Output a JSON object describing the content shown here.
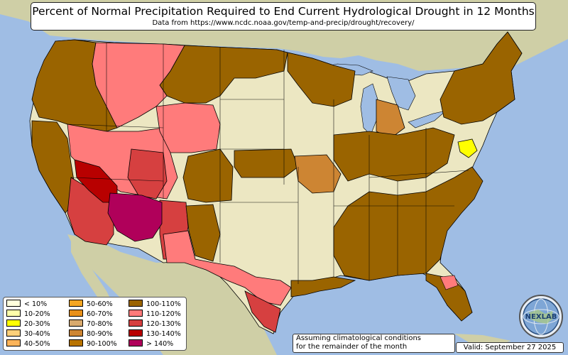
{
  "title": "Percent of Normal Precipitation Required to End Current Hydrological Drought in 12 Months",
  "subtitle": "Data from https://www.ncdc.noaa.gov/temp-and-precip/drought/recovery/",
  "legend": {
    "items": [
      {
        "label": "< 10%",
        "color": "#ffffdd"
      },
      {
        "label": "10-20%",
        "color": "#ffffaa"
      },
      {
        "label": "20-30%",
        "color": "#ffff00"
      },
      {
        "label": "30-40%",
        "color": "#fdd07a"
      },
      {
        "label": "40-50%",
        "color": "#fdb45a"
      },
      {
        "label": "50-60%",
        "color": "#f5a623"
      },
      {
        "label": "60-70%",
        "color": "#e8901a"
      },
      {
        "label": "70-80%",
        "color": "#d9aa6e"
      },
      {
        "label": "80-90%",
        "color": "#cd8533"
      },
      {
        "label": "90-100%",
        "color": "#b87300"
      },
      {
        "label": "100-110%",
        "color": "#9a6400"
      },
      {
        "label": "110-120%",
        "color": "#ff7b7b"
      },
      {
        "label": "120-130%",
        "color": "#d64040"
      },
      {
        "label": "130-140%",
        "color": "#b80000"
      },
      {
        "label": "> 140%",
        "color": "#b0005a"
      }
    ]
  },
  "note": {
    "line1": "Assuming climatological conditions",
    "line2": "for the remainder of the month"
  },
  "valid": "Valid: September 27 2025",
  "logo": {
    "text": "NEXLAB",
    "icon": "globe-logo-icon"
  },
  "colors": {
    "ocean": "#9fbde4",
    "land_base": "#ece7c2",
    "foreign_land": "#cfcfa6",
    "state_border": "#000000"
  }
}
